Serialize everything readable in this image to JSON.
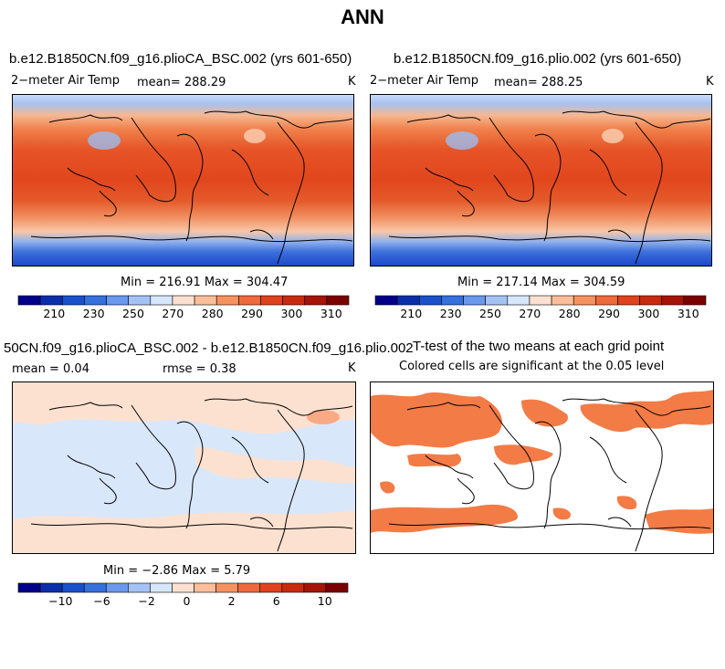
{
  "title": "ANN",
  "panels": [
    {
      "title": "b.e12.B1850CN.f09_g16.plioCA_BSC.002 (yrs 601-650)",
      "variable": "2−meter Air Temp",
      "mean_text": "mean= 288.29",
      "units": "K",
      "minmax": "Min = 216.91 Max = 304.47",
      "colorbar_labels": [
        "210",
        "230",
        "250",
        "270",
        "280",
        "290",
        "300",
        "310"
      ]
    },
    {
      "title": "b.e12.B1850CN.f09_g16.plio.002 (yrs 601-650)",
      "variable": "2−meter Air Temp",
      "mean_text": "mean= 288.25",
      "units": "K",
      "minmax": "Min = 217.14 Max = 304.59",
      "colorbar_labels": [
        "210",
        "230",
        "250",
        "270",
        "280",
        "290",
        "300",
        "310"
      ]
    },
    {
      "title": "50CN.f09_g16.plioCA_BSC.002 - b.e12.B1850CN.f09_g16.plio.002",
      "mean_text": "mean =    0.04",
      "rmse_text": "rmse =    0.38",
      "units": "K",
      "minmax": "Min =  −2.86 Max =   5.79",
      "colorbar_labels": [
        "−10",
        "−6",
        "−2",
        "0",
        "2",
        "6",
        "10"
      ]
    },
    {
      "title": "T-test of the two means at each grid point",
      "subtitle": "Colored cells are significant at the 0.05 level"
    }
  ],
  "colors": {
    "temp_scale": [
      "#00008a",
      "#0b2faa",
      "#1a50cc",
      "#3570dd",
      "#6a98ec",
      "#a4c2f4",
      "#d6e6fb",
      "#fde1d0",
      "#fbbe9b",
      "#f6925f",
      "#ee6a3c",
      "#e0421f",
      "#c82a0e",
      "#a51406",
      "#7a0202"
    ],
    "diff_scale": [
      "#00008a",
      "#0b2faa",
      "#1a50cc",
      "#3570dd",
      "#6a98ec",
      "#a4c2f4",
      "#d6e6fb",
      "#fde1d0",
      "#fbbe9b",
      "#f6925f",
      "#ee6a3c",
      "#e0421f",
      "#c82a0e",
      "#a51406",
      "#7a0202"
    ],
    "significant": "#f37b46"
  }
}
